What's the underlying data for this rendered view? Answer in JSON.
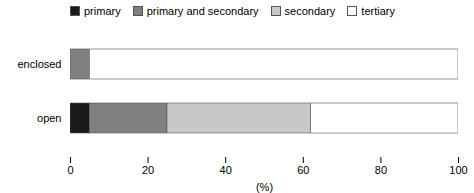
{
  "chart_data": {
    "type": "bar",
    "orientation": "horizontal",
    "stacked": true,
    "categories": [
      "enclosed",
      "open"
    ],
    "series": [
      {
        "name": "primary",
        "color": "#1a1a1a",
        "values": [
          0,
          5
        ]
      },
      {
        "name": "primary and secondary",
        "color": "#808080",
        "values": [
          5,
          20
        ]
      },
      {
        "name": "secondary",
        "color": "#c8c8c8",
        "values": [
          0,
          37
        ]
      },
      {
        "name": "tertiary",
        "color": "#ffffff",
        "values": [
          95,
          38
        ]
      }
    ],
    "xlim": [
      0,
      100
    ],
    "xticks": [
      0,
      20,
      40,
      60,
      80,
      100
    ],
    "xlabel": "(%)",
    "grid": false
  }
}
